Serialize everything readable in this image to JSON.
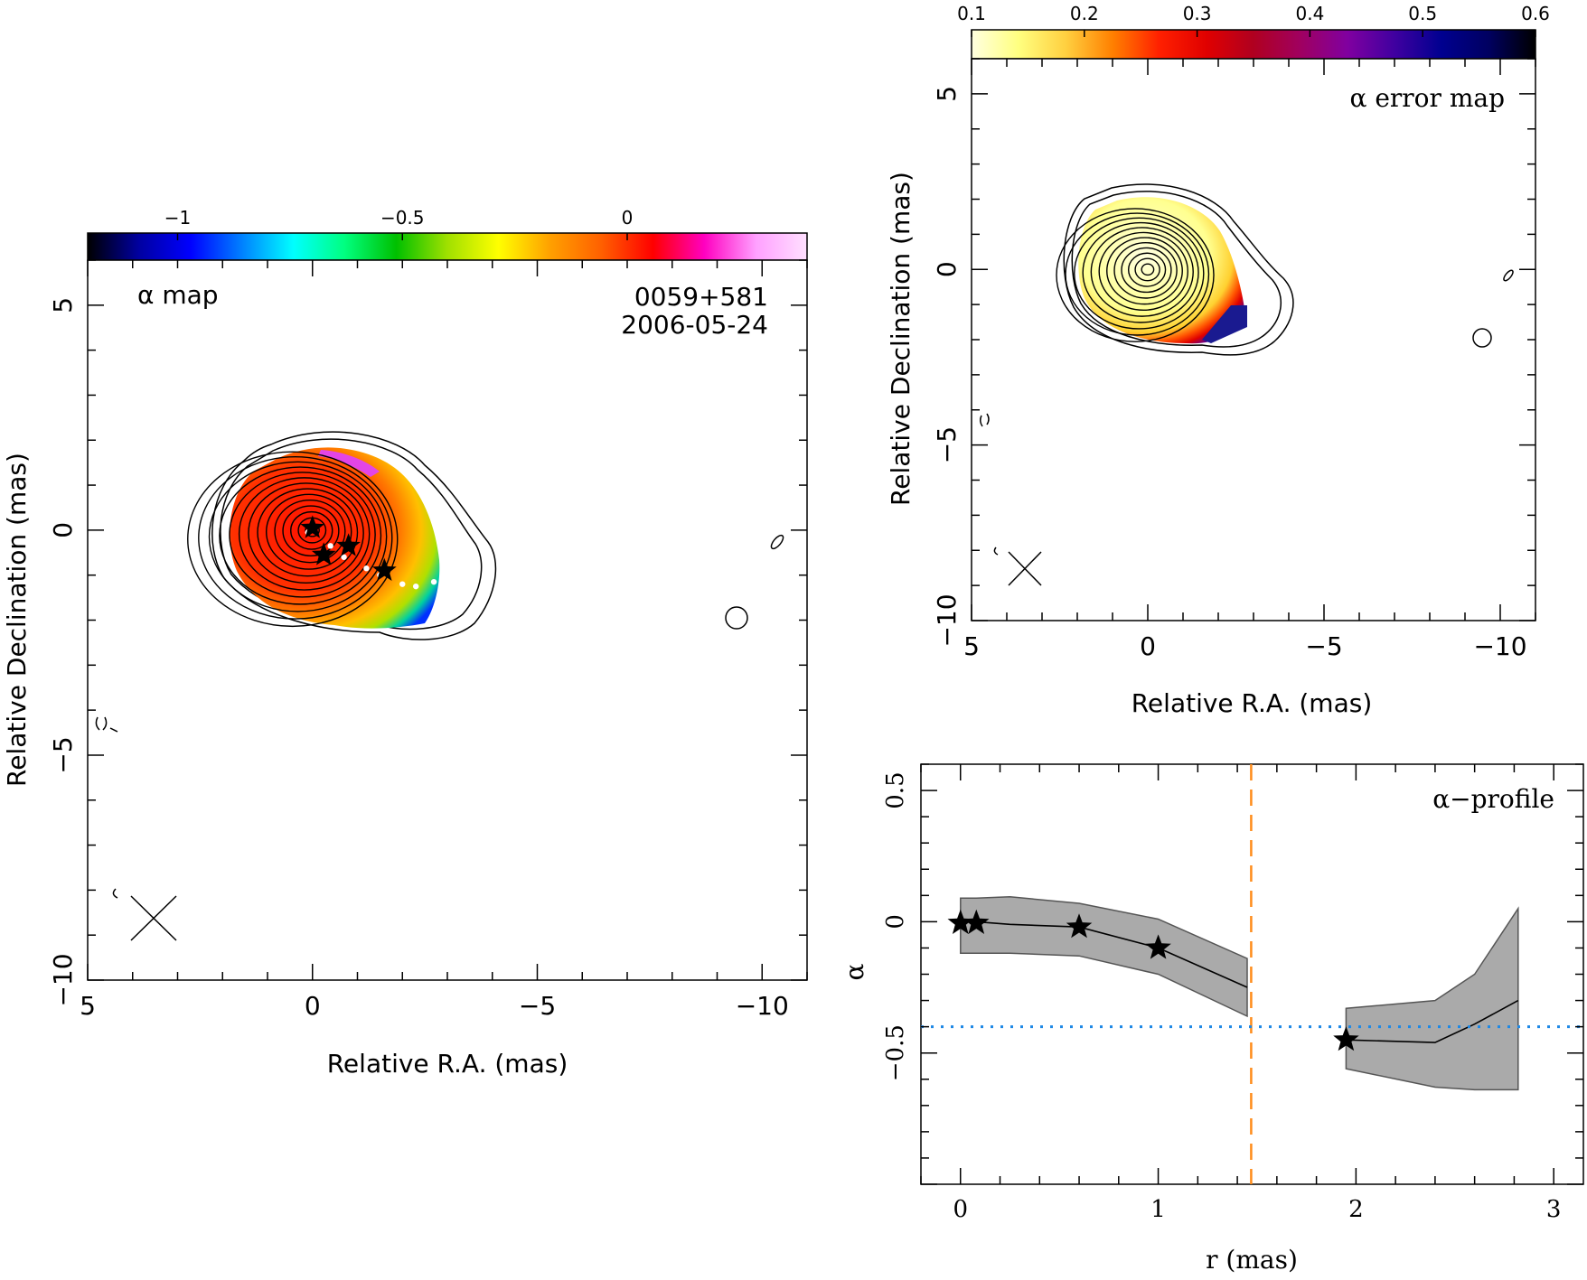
{
  "chart_data": [
    {
      "type": "heatmap",
      "panel": "alpha-map",
      "map_label": "α map",
      "source": "0059+581",
      "date": "2006-05-24",
      "xlabel": "Relative R.A. (mas)",
      "ylabel": "Relative Declination (mas)",
      "xlim": [
        5,
        -11
      ],
      "ylim": [
        -10,
        6
      ],
      "x_ticks": [
        5,
        0,
        -5,
        -10
      ],
      "x_tick_labels": [
        "5",
        "0",
        "−5",
        "−10"
      ],
      "y_ticks": [
        5,
        0,
        -5,
        -10
      ],
      "y_tick_labels": [
        "5",
        "0",
        "−5",
        "−10"
      ],
      "colorbar": {
        "range": [
          -1.2,
          0.4
        ],
        "ticks": [
          -1,
          -0.5,
          0
        ],
        "tick_labels": [
          "−1",
          "−0.5",
          "0"
        ],
        "colors": [
          "#000000",
          "#0000a0",
          "#0000ff",
          "#0080ff",
          "#00ffff",
          "#00ff80",
          "#00c000",
          "#a0e000",
          "#ffff00",
          "#ffa000",
          "#ff6000",
          "#ff0000",
          "#ff00c0",
          "#ffa0ff",
          "#ffe0ff"
        ]
      },
      "component_stars": [
        {
          "x": 0.0,
          "y": 0.05
        },
        {
          "x": -0.25,
          "y": -0.55
        },
        {
          "x": -0.8,
          "y": -0.35
        },
        {
          "x": -1.6,
          "y": -0.9
        }
      ],
      "ridge_points": [
        {
          "x": 0.1,
          "y": -0.05
        },
        {
          "x": -0.4,
          "y": -0.35
        },
        {
          "x": -0.7,
          "y": -0.6
        },
        {
          "x": -1.2,
          "y": -0.85
        },
        {
          "x": -1.5,
          "y": -1.0
        },
        {
          "x": -2.0,
          "y": -1.2
        },
        {
          "x": -2.3,
          "y": -1.25
        },
        {
          "x": -2.7,
          "y": -1.15
        }
      ]
    },
    {
      "type": "heatmap",
      "panel": "alpha-error-map",
      "map_label": "α error map",
      "xlabel": "Relative R.A. (mas)",
      "ylabel": "Relative Declination (mas)",
      "xlim": [
        5,
        -11
      ],
      "ylim": [
        -10,
        6
      ],
      "x_ticks": [
        5,
        0,
        -5,
        -10
      ],
      "x_tick_labels": [
        "5",
        "0",
        "−5",
        "−10"
      ],
      "y_ticks": [
        5,
        0,
        -5,
        -10
      ],
      "y_tick_labels": [
        "5",
        "0",
        "−5",
        "−10"
      ],
      "colorbar": {
        "range": [
          0.1,
          0.6
        ],
        "ticks": [
          0.1,
          0.2,
          0.3,
          0.4,
          0.5,
          0.6
        ],
        "tick_labels": [
          "0.1",
          "0.2",
          "0.3",
          "0.4",
          "0.5",
          "0.6"
        ],
        "colors": [
          "#ffffe0",
          "#ffff80",
          "#ffd040",
          "#ff8000",
          "#ff2000",
          "#e00000",
          "#b00020",
          "#a00060",
          "#8000a0",
          "#4000a0",
          "#000090",
          "#000060",
          "#000000"
        ]
      }
    },
    {
      "type": "line",
      "panel": "alpha-profile",
      "map_label": "α−profile",
      "xlabel": "r (mas)",
      "ylabel": "α",
      "xlim": [
        -0.2,
        3.15
      ],
      "ylim": [
        -1.0,
        0.6
      ],
      "x_ticks": [
        0,
        1,
        2,
        3
      ],
      "x_tick_labels": [
        "0",
        "1",
        "2",
        "3"
      ],
      "y_ticks": [
        0.5,
        0,
        -0.5
      ],
      "y_tick_labels": [
        "0.5",
        "0",
        "−0.5"
      ],
      "series": [
        {
          "x": [
            0.0,
            0.08,
            0.25,
            0.6,
            1.0,
            1.45
          ],
          "y": [
            0.0,
            0.0,
            -0.01,
            -0.02,
            -0.1,
            -0.25
          ],
          "upper": [
            0.09,
            0.09,
            0.095,
            0.07,
            0.01,
            -0.14
          ],
          "lower": [
            -0.12,
            -0.12,
            -0.12,
            -0.13,
            -0.2,
            -0.36
          ]
        },
        {
          "x": [
            1.95,
            2.4,
            2.6,
            2.82
          ],
          "y": [
            -0.45,
            -0.46,
            -0.39,
            -0.3
          ],
          "upper": [
            -0.33,
            -0.3,
            -0.2,
            0.05
          ],
          "lower": [
            -0.56,
            -0.63,
            -0.64,
            -0.64
          ]
        }
      ],
      "stars": [
        {
          "x": 0.0,
          "y": -0.005
        },
        {
          "x": 0.08,
          "y": -0.005
        },
        {
          "x": 0.6,
          "y": -0.02
        },
        {
          "x": 1.0,
          "y": -0.1
        },
        {
          "x": 1.95,
          "y": -0.45
        }
      ],
      "vline_x": 1.47,
      "hline_y": -0.4,
      "colors": {
        "band": "#aaaaaa",
        "vline": "#ff8c1a",
        "hline": "#1e88e5"
      }
    }
  ]
}
